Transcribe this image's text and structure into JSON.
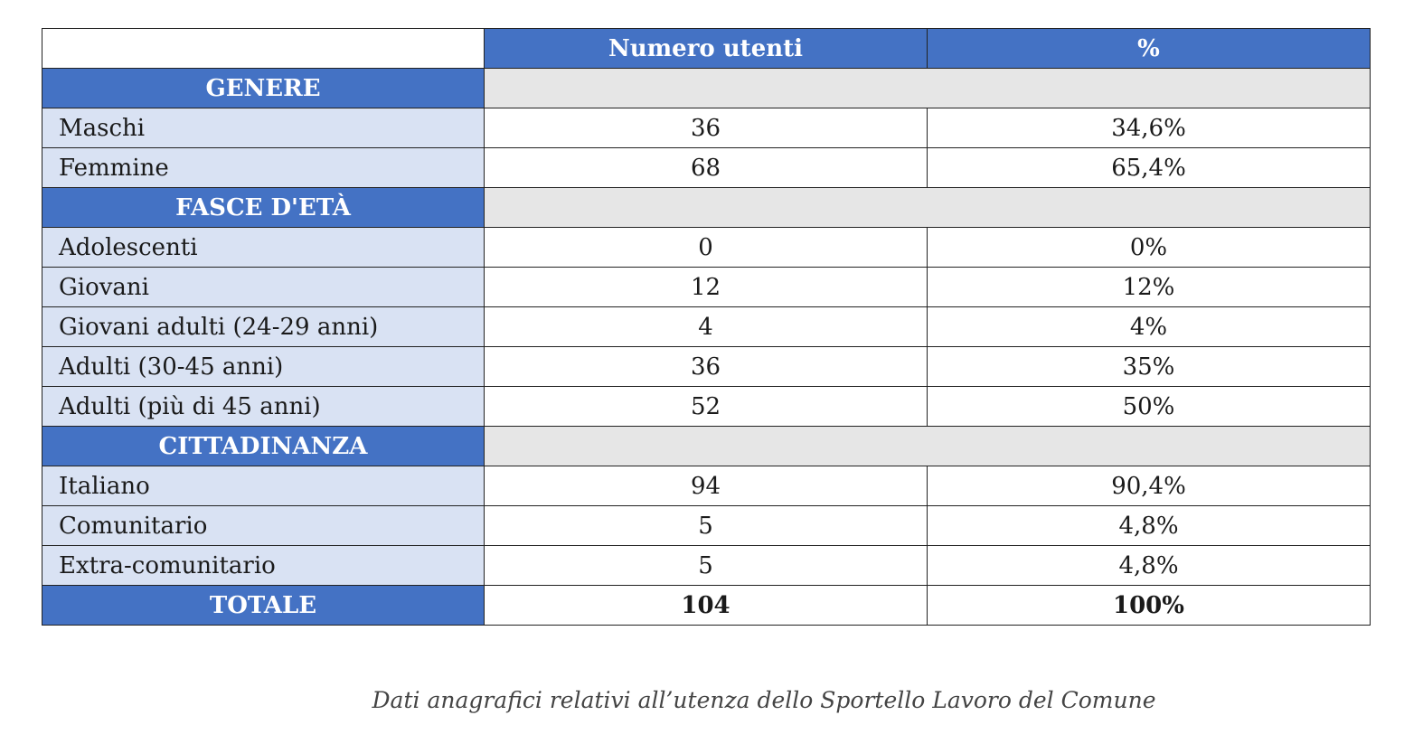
{
  "header": {
    "col1": "",
    "col2": "Numero utenti",
    "col3": "%"
  },
  "sections": [
    {
      "title": "GENERE",
      "rows": [
        {
          "label": "Maschi",
          "count": "36",
          "pct": "34,6%"
        },
        {
          "label": "Femmine",
          "count": "68",
          "pct": "65,4%"
        }
      ]
    },
    {
      "title": "FASCE D'ETÀ",
      "rows": [
        {
          "label": "Adolescenti",
          "count": "0",
          "pct": "0%"
        },
        {
          "label": "Giovani",
          "count": "12",
          "pct": "12%"
        },
        {
          "label": "Giovani adulti (24-29 anni)",
          "count": "4",
          "pct": "4%"
        },
        {
          "label": "Adulti (30-45 anni)",
          "count": "36",
          "pct": "35%"
        },
        {
          "label": "Adulti (più di 45 anni)",
          "count": "52",
          "pct": "50%"
        }
      ]
    },
    {
      "title": "CITTADINANZA",
      "rows": [
        {
          "label": "Italiano",
          "count": "94",
          "pct": "90,4%"
        },
        {
          "label": "Comunitario",
          "count": "5",
          "pct": "4,8%"
        },
        {
          "label": "Extra-comunitario",
          "count": "5",
          "pct": "4,8%"
        }
      ]
    }
  ],
  "total": {
    "label": "TOTALE",
    "count": "104",
    "pct": "100%"
  },
  "caption": "Dati anagrafici relativi all’utenza dello Sportello Lavoro del Comune",
  "colors": {
    "header_blue": "#4472c4",
    "label_bg": "#d9e2f3",
    "section_fill": "#e6e6e6"
  }
}
